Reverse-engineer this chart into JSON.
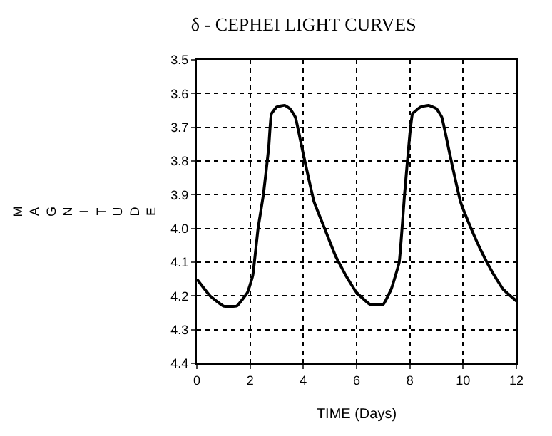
{
  "chart_data": {
    "type": "line",
    "title": "δ - CEPHEI LIGHT CURVES",
    "xlabel": "TIME (Days)",
    "ylabel": "MAGNITUDE",
    "x": [
      0,
      0.5,
      1,
      1.5,
      1.9,
      2.1,
      2.3,
      2.5,
      2.7,
      2.8,
      3.0,
      3.3,
      3.5,
      3.7,
      4.0,
      4.4,
      4.8,
      5.2,
      5.6,
      6.0,
      6.5,
      7.0,
      7.3,
      7.6,
      7.8,
      8.0,
      8.1,
      8.4,
      8.7,
      9.0,
      9.2,
      9.5,
      9.9,
      10.3,
      10.7,
      11.1,
      11.5,
      12
    ],
    "series": [
      {
        "color": "#000000",
        "values": [
          4.15,
          4.2,
          4.23,
          4.23,
          4.19,
          4.14,
          4.0,
          3.9,
          3.76,
          3.66,
          3.64,
          3.635,
          3.645,
          3.67,
          3.78,
          3.92,
          4.0,
          4.08,
          4.14,
          4.19,
          4.225,
          4.225,
          4.18,
          4.1,
          3.9,
          3.72,
          3.66,
          3.64,
          3.635,
          3.645,
          3.67,
          3.78,
          3.92,
          4.0,
          4.07,
          4.13,
          4.18,
          4.215
        ]
      }
    ],
    "xlim": [
      0,
      12
    ],
    "xticks": [
      0,
      2,
      4,
      6,
      8,
      10,
      12
    ],
    "ylim": [
      4.4,
      3.5
    ],
    "yticks": [
      {
        "value": 3.5,
        "label": "3.5"
      },
      {
        "value": 3.6,
        "label": "3.6"
      },
      {
        "value": 3.7,
        "label": "3.7"
      },
      {
        "value": 3.8,
        "label": "3.8"
      },
      {
        "value": 3.9,
        "label": "3.9"
      },
      {
        "value": 4.0,
        "label": "4.0"
      },
      {
        "value": 4.1,
        "label": "4.1"
      },
      {
        "value": 4.2,
        "label": "4.2"
      },
      {
        "value": 4.3,
        "label": "4.3"
      },
      {
        "value": 4.4,
        "label": "4.4"
      }
    ],
    "grid": true,
    "line_style": "solid",
    "marker": "none",
    "legend": false
  }
}
